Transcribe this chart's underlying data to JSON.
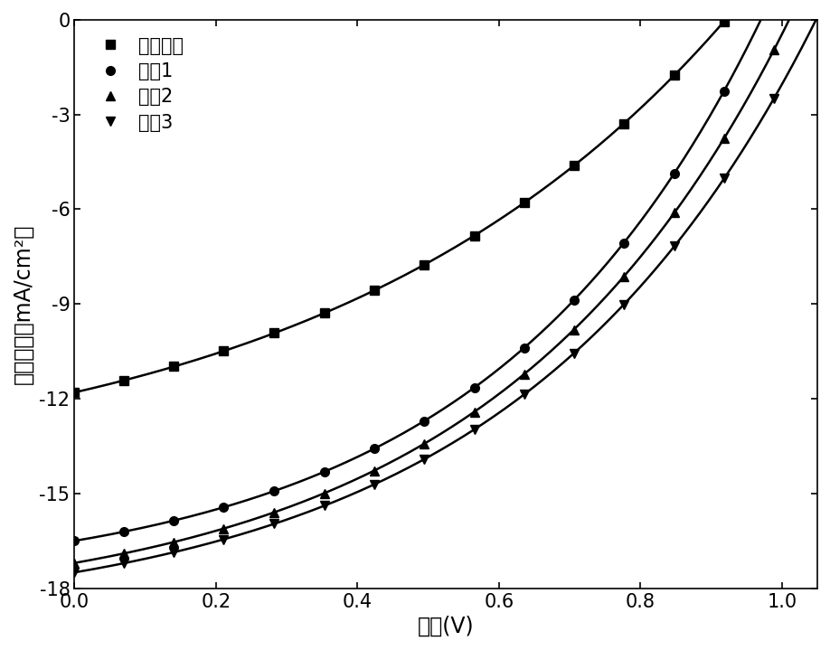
{
  "xlabel": "电压(V)",
  "ylabel": "电流密度（mA/cm²）",
  "xlim": [
    0.0,
    1.05
  ],
  "ylim": [
    -18,
    0
  ],
  "xticks": [
    0.0,
    0.2,
    0.4,
    0.6,
    0.8,
    1.0
  ],
  "yticks": [
    0,
    -3,
    -6,
    -9,
    -12,
    -15,
    -18
  ],
  "series": [
    {
      "label": "对比实例",
      "marker": "s",
      "Jsc": -11.8,
      "Voc": 0.92,
      "n_factor": 22.0,
      "Rs": 0.0
    },
    {
      "label": "实例1",
      "marker": "o",
      "Jsc": -16.5,
      "Voc": 0.97,
      "n_factor": 15.0,
      "Rs": 0.0
    },
    {
      "label": "实例2",
      "marker": "^",
      "Jsc": -17.2,
      "Voc": 1.01,
      "n_factor": 16.0,
      "Rs": 0.0
    },
    {
      "label": "实例3",
      "marker": "v",
      "Jsc": -17.5,
      "Voc": 1.048,
      "n_factor": 16.5,
      "Rs": 0.0
    }
  ],
  "n_markers": 16,
  "line_color": "#000000",
  "background_color": "#ffffff",
  "legend_fontsize": 15,
  "axis_fontsize": 17,
  "tick_fontsize": 15
}
